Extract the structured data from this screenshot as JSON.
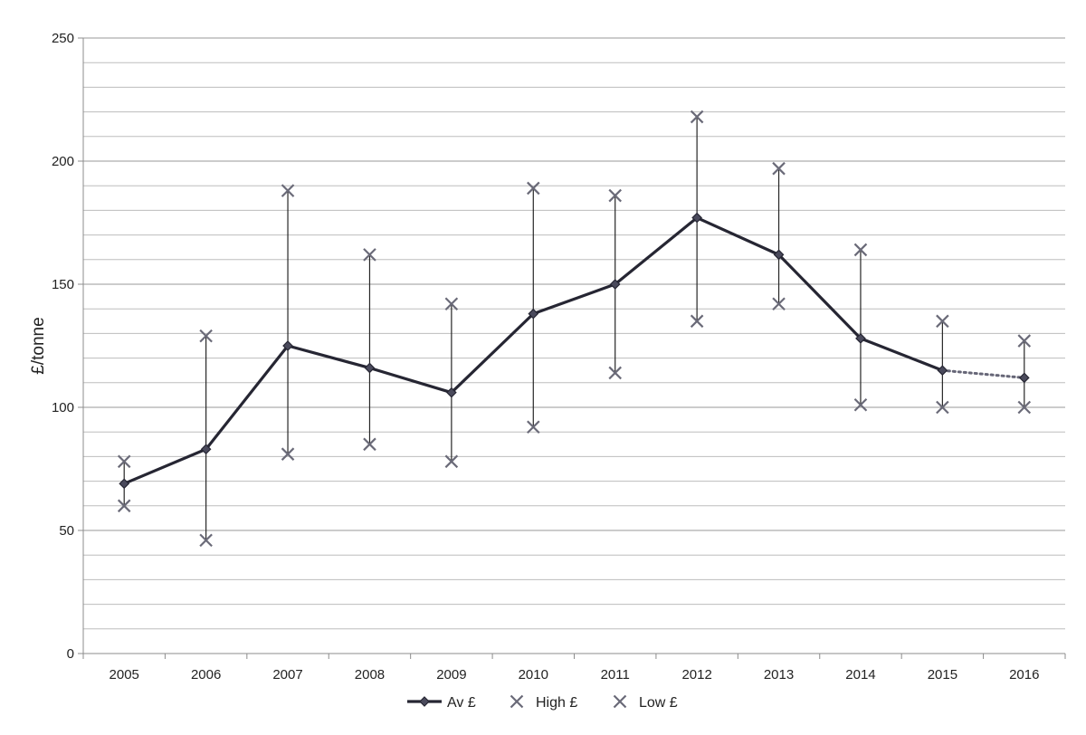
{
  "chart_data": {
    "type": "line",
    "title": "",
    "xlabel": "",
    "ylabel": "£/tonne",
    "ylim": [
      0,
      250
    ],
    "y_major_ticks": [
      0,
      50,
      100,
      150,
      200,
      250
    ],
    "y_minor_step": 10,
    "grid": true,
    "legend_position": "bottom",
    "categories": [
      "2005",
      "2006",
      "2007",
      "2008",
      "2009",
      "2010",
      "2011",
      "2012",
      "2013",
      "2014",
      "2015",
      "2016"
    ],
    "series": [
      {
        "name": "Av £",
        "marker": "diamond",
        "line": "solid, dotted for final segment",
        "values": [
          69,
          83,
          125,
          116,
          106,
          138,
          150,
          177,
          162,
          128,
          115,
          112
        ]
      },
      {
        "name": "High £",
        "marker": "x",
        "values": [
          78,
          129,
          188,
          162,
          142,
          189,
          186,
          218,
          197,
          164,
          135,
          127
        ]
      },
      {
        "name": "Low £",
        "marker": "x",
        "values": [
          60,
          46,
          81,
          85,
          78,
          92,
          114,
          135,
          142,
          101,
          100,
          100
        ]
      }
    ],
    "colors": {
      "average_line": "#262633",
      "average_marker": "#4a4a5c",
      "x_marker": "#6a6a78",
      "range_bar": "#262626",
      "grid": "#bdbdbd",
      "major_grid": "#999999",
      "axis": "#8c8c8c"
    }
  }
}
